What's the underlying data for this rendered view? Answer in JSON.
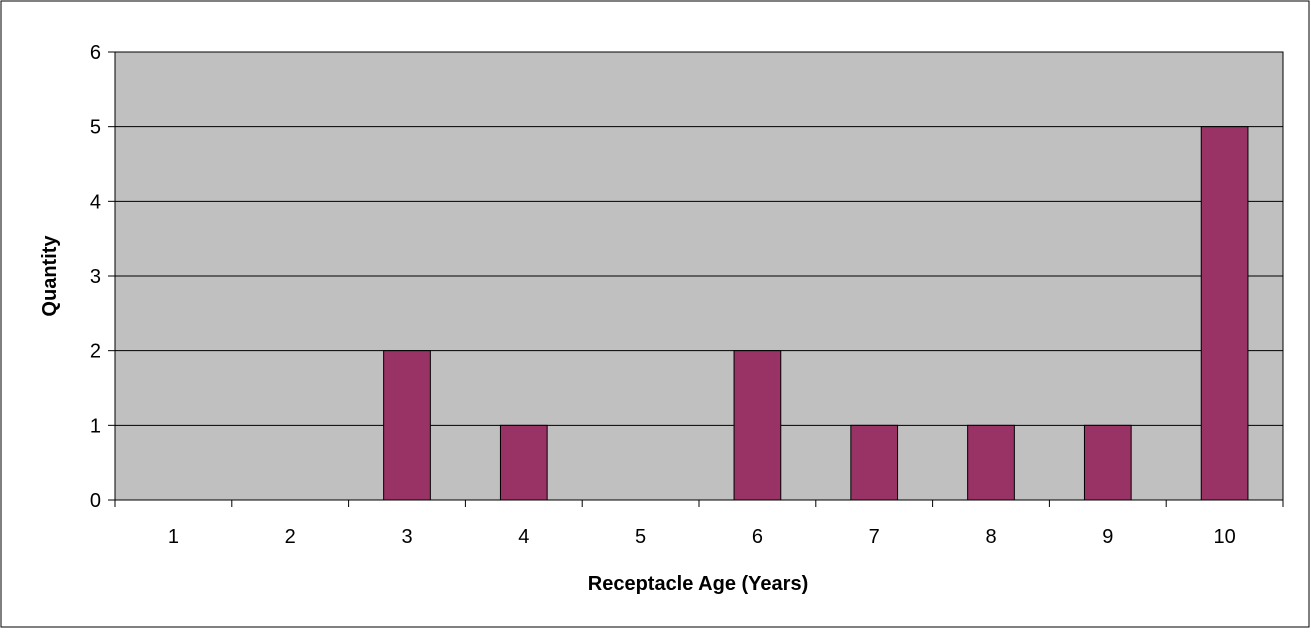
{
  "chart_data": {
    "type": "bar",
    "title": "",
    "xlabel": "Receptacle Age (Years)",
    "ylabel": "Quantity",
    "categories": [
      "1",
      "2",
      "3",
      "4",
      "5",
      "6",
      "7",
      "8",
      "9",
      "10"
    ],
    "values": [
      0,
      0,
      2,
      1,
      0,
      2,
      1,
      1,
      1,
      5
    ],
    "ylim": [
      0,
      6
    ],
    "yticks": [
      "0",
      "1",
      "2",
      "3",
      "4",
      "5",
      "6"
    ],
    "grid": true,
    "legend": "none",
    "colors": {
      "bar": "#993366",
      "plot_background": "#c0c0c0",
      "gridline": "#000000",
      "frame": "#000000"
    }
  }
}
